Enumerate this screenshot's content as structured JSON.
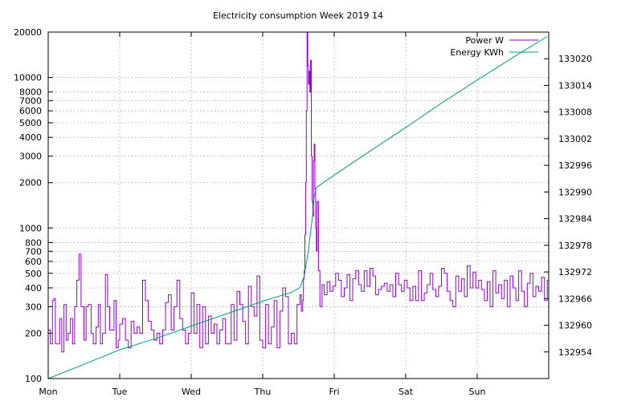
{
  "chart_data": {
    "type": "line",
    "title": "Electricity consumption Week 2019 14",
    "x_ticks": [
      "Mon",
      "Tue",
      "Wed",
      "Thu",
      "Fri",
      "Sat",
      "Sun"
    ],
    "x_range_days": [
      0,
      7
    ],
    "y_left": {
      "scale": "log",
      "range": [
        100,
        20000
      ],
      "ticks": [
        100,
        200,
        300,
        400,
        500,
        600,
        700,
        800,
        1000,
        2000,
        3000,
        4000,
        5000,
        6000,
        7000,
        8000,
        10000,
        20000
      ]
    },
    "y_right": {
      "scale": "linear",
      "range": [
        132948,
        133026
      ],
      "ticks": [
        132954,
        132960,
        132966,
        132972,
        132978,
        132984,
        132990,
        132996,
        133002,
        133008,
        133014,
        133020
      ]
    },
    "grid": true,
    "legend_position": "top-right",
    "series": [
      {
        "name": "Power W",
        "axis": "left",
        "color": "#9400d3",
        "x": [
          0.0,
          0.03,
          0.06,
          0.08,
          0.1,
          0.13,
          0.16,
          0.19,
          0.22,
          0.25,
          0.28,
          0.31,
          0.34,
          0.37,
          0.4,
          0.43,
          0.46,
          0.5,
          0.53,
          0.56,
          0.6,
          0.63,
          0.67,
          0.7,
          0.73,
          0.76,
          0.8,
          0.83,
          0.86,
          0.89,
          0.92,
          0.95,
          0.98,
          1.0,
          1.04,
          1.08,
          1.12,
          1.16,
          1.2,
          1.24,
          1.28,
          1.32,
          1.36,
          1.4,
          1.44,
          1.48,
          1.52,
          1.56,
          1.6,
          1.64,
          1.68,
          1.72,
          1.76,
          1.8,
          1.84,
          1.88,
          1.92,
          1.96,
          2.0,
          2.04,
          2.08,
          2.12,
          2.16,
          2.2,
          2.24,
          2.28,
          2.32,
          2.36,
          2.4,
          2.44,
          2.48,
          2.52,
          2.56,
          2.6,
          2.64,
          2.68,
          2.72,
          2.76,
          2.8,
          2.84,
          2.88,
          2.92,
          2.96,
          3.0,
          3.04,
          3.08,
          3.12,
          3.16,
          3.2,
          3.24,
          3.28,
          3.32,
          3.36,
          3.4,
          3.44,
          3.48,
          3.52,
          3.54,
          3.56,
          3.57,
          3.58,
          3.59,
          3.6,
          3.61,
          3.62,
          3.63,
          3.64,
          3.65,
          3.66,
          3.67,
          3.68,
          3.69,
          3.7,
          3.71,
          3.72,
          3.73,
          3.74,
          3.75,
          3.76,
          3.78,
          3.8,
          3.83,
          3.86,
          3.9,
          3.94,
          3.98,
          4.02,
          4.06,
          4.1,
          4.14,
          4.18,
          4.22,
          4.26,
          4.3,
          4.34,
          4.38,
          4.42,
          4.46,
          4.5,
          4.54,
          4.58,
          4.62,
          4.66,
          4.7,
          4.74,
          4.78,
          4.82,
          4.86,
          4.9,
          4.94,
          4.98,
          5.02,
          5.06,
          5.1,
          5.14,
          5.18,
          5.22,
          5.26,
          5.3,
          5.34,
          5.38,
          5.42,
          5.46,
          5.5,
          5.54,
          5.58,
          5.62,
          5.66,
          5.7,
          5.74,
          5.78,
          5.82,
          5.86,
          5.9,
          5.94,
          5.98,
          6.02,
          6.06,
          6.1,
          6.14,
          6.18,
          6.22,
          6.26,
          6.3,
          6.34,
          6.38,
          6.42,
          6.46,
          6.5,
          6.54,
          6.58,
          6.62,
          6.66,
          6.7,
          6.74,
          6.78,
          6.82,
          6.86,
          6.9,
          6.94,
          6.98
        ],
        "y": [
          210,
          170,
          330,
          340,
          170,
          170,
          250,
          150,
          310,
          180,
          200,
          250,
          170,
          300,
          450,
          670,
          300,
          180,
          300,
          310,
          200,
          170,
          220,
          310,
          170,
          200,
          490,
          300,
          210,
          210,
          330,
          160,
          180,
          230,
          250,
          180,
          160,
          240,
          200,
          220,
          200,
          450,
          330,
          240,
          210,
          180,
          200,
          170,
          210,
          320,
          360,
          210,
          300,
          450,
          250,
          210,
          170,
          200,
          370,
          200,
          310,
          160,
          300,
          170,
          260,
          200,
          230,
          170,
          210,
          250,
          170,
          170,
          310,
          180,
          380,
          310,
          240,
          170,
          410,
          300,
          260,
          480,
          180,
          160,
          310,
          170,
          220,
          330,
          160,
          280,
          400,
          350,
          170,
          200,
          170,
          310,
          360,
          280,
          330,
          460,
          520,
          900,
          2000,
          6000,
          20000,
          12000,
          9000,
          11000,
          8000,
          13000,
          3000,
          1500,
          1200,
          2800,
          3600,
          1800,
          1000,
          700,
          1500,
          520,
          300,
          420,
          360,
          440,
          380,
          410,
          500,
          450,
          350,
          400,
          490,
          330,
          460,
          520,
          420,
          380,
          520,
          410,
          540,
          480,
          360,
          390,
          410,
          430,
          380,
          420,
          350,
          500,
          420,
          380,
          450,
          400,
          330,
          410,
          330,
          520,
          330,
          370,
          420,
          500,
          390,
          350,
          410,
          540,
          500,
          380,
          330,
          300,
          480,
          380,
          460,
          350,
          560,
          400,
          510,
          400,
          450,
          390,
          330,
          440,
          300,
          520,
          370,
          420,
          340,
          450,
          300,
          480,
          400,
          330,
          520,
          380,
          300,
          430,
          500,
          350,
          410,
          380,
          470,
          330,
          450
        ]
      },
      {
        "name": "Energy KWh",
        "axis": "right",
        "color": "#009e73",
        "x": [
          0,
          0.5,
          1.0,
          1.5,
          2.0,
          2.5,
          3.0,
          3.4,
          3.52,
          3.58,
          3.64,
          3.7,
          3.72,
          3.75,
          4.0,
          4.5,
          5.0,
          5.5,
          6.0,
          6.5,
          6.98
        ],
        "y": [
          132948,
          132951.2,
          132954.5,
          132957,
          132959.8,
          132962.6,
          132965.4,
          132967.4,
          132968.5,
          132971,
          132977,
          132985,
          132989,
          132991,
          132993.8,
          132999.2,
          133004.5,
          133010,
          133015.2,
          133020.3,
          133025
        ]
      }
    ]
  }
}
